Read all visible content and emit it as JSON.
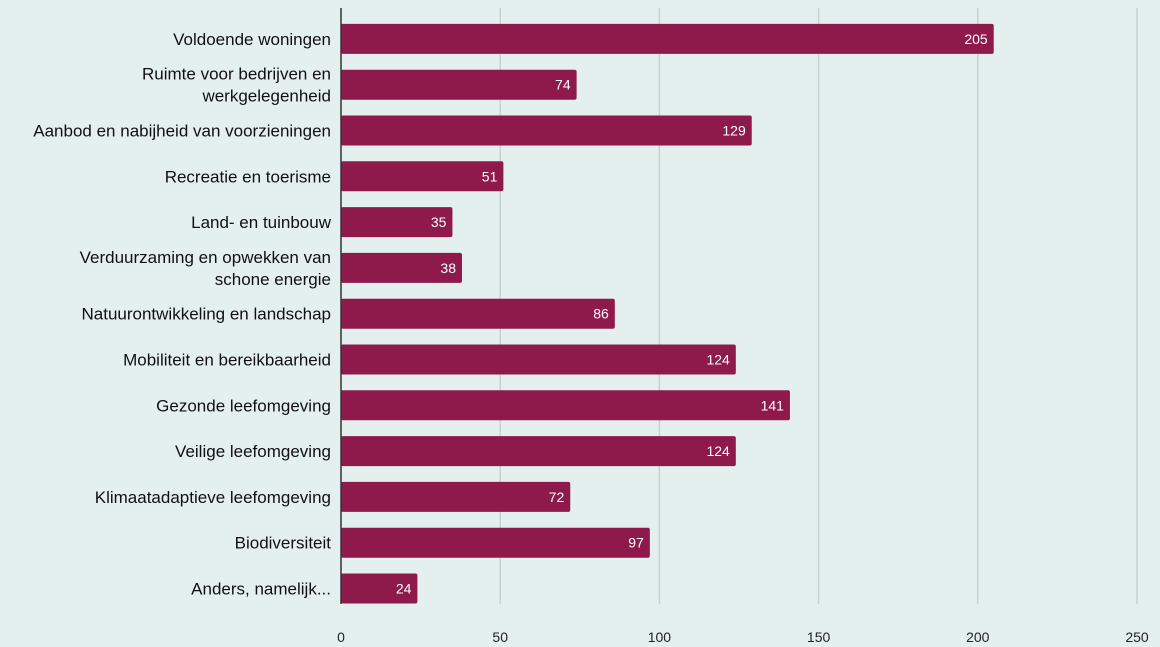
{
  "chart_data": {
    "type": "bar",
    "orientation": "horizontal",
    "title": "",
    "xlabel": "",
    "ylabel": "",
    "categories": [
      [
        "Voldoende woningen"
      ],
      [
        "Ruimte voor bedrijven en",
        "werkgelegenheid"
      ],
      [
        "Aanbod en nabijheid van voorzieningen"
      ],
      [
        "Recreatie en toerisme"
      ],
      [
        "Land- en tuinbouw"
      ],
      [
        "Verduurzaming en opwekken van",
        "schone energie"
      ],
      [
        "Natuurontwikkeling en landschap"
      ],
      [
        "Mobiliteit en bereikbaarheid"
      ],
      [
        "Gezonde leefomgeving"
      ],
      [
        "Veilige leefomgeving"
      ],
      [
        "Klimaatadaptieve leefomgeving"
      ],
      [
        "Biodiversiteit"
      ],
      [
        "Anders, namelijk..."
      ]
    ],
    "values": [
      205,
      74,
      129,
      51,
      35,
      38,
      86,
      124,
      141,
      124,
      72,
      97,
      24
    ],
    "xlim": [
      0,
      250
    ],
    "xticks": [
      0,
      50,
      100,
      150,
      200,
      250
    ],
    "grid": true,
    "legend": "none",
    "bar_color": "#8e1a4b",
    "background_color": "#e3f0ef"
  }
}
